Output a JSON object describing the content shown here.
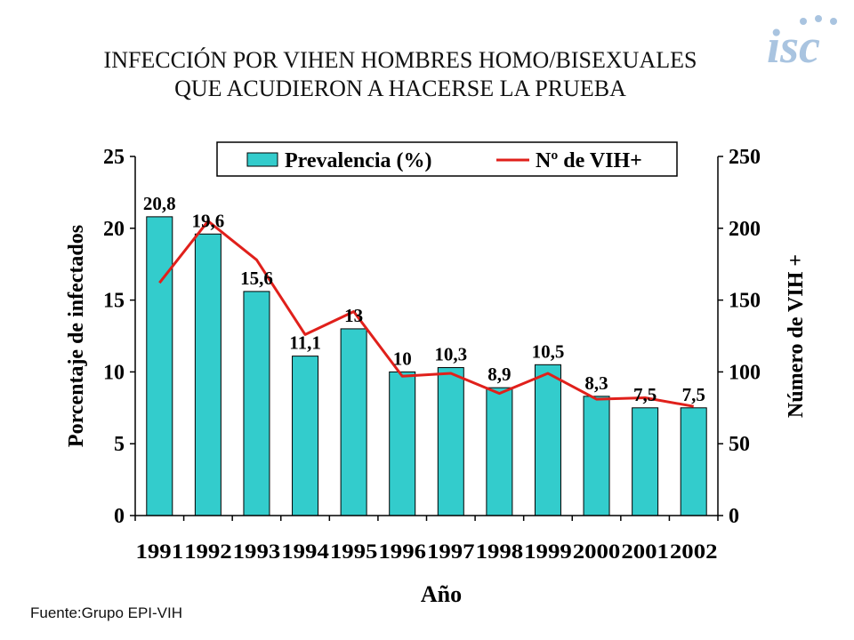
{
  "title": {
    "line1": "INFECCIÓN POR VIHEN HOMBRES HOMO/BISEXUALES",
    "line2": "QUE ACUDIERON A HACERSE LA PRUEBA"
  },
  "logo": {
    "text": "isc",
    "color": "#a9c4e0"
  },
  "source": "Fuente:Grupo EPI-VIH",
  "chart_data": {
    "type": "bar",
    "categories": [
      "1991",
      "1992",
      "1993",
      "1994",
      "1995",
      "1996",
      "1997",
      "1998",
      "1999",
      "2000",
      "2001",
      "2002"
    ],
    "series": [
      {
        "name": "Prevalencia (%)",
        "type": "bar",
        "axis": "left",
        "color": "#33cccc",
        "values": [
          20.8,
          19.6,
          15.6,
          11.1,
          13,
          10,
          10.3,
          8.9,
          10.5,
          8.3,
          7.5,
          7.5
        ],
        "labels": [
          "20,8",
          "19,6",
          "15,6",
          "11,1",
          "13",
          "10",
          "10,3",
          "8,9",
          "10,5",
          "8,3",
          "7,5",
          "7,5"
        ]
      },
      {
        "name": "Nº de VIH+",
        "type": "line",
        "axis": "right",
        "color": "#e0201b",
        "values": [
          162,
          205,
          178,
          126,
          142,
          97,
          99,
          85,
          99,
          81,
          82,
          76
        ]
      }
    ],
    "xlabel": "Año",
    "ylabel": "Porcentaje de infectados",
    "y2label": "Número de VIH +",
    "ylim": [
      0,
      25
    ],
    "yticks": [
      "0",
      "5",
      "10",
      "15",
      "20",
      "25"
    ],
    "y2lim": [
      0,
      250
    ],
    "y2ticks": [
      "0",
      "50",
      "100",
      "150",
      "200",
      "250"
    ],
    "grid": false,
    "legend": "top"
  }
}
